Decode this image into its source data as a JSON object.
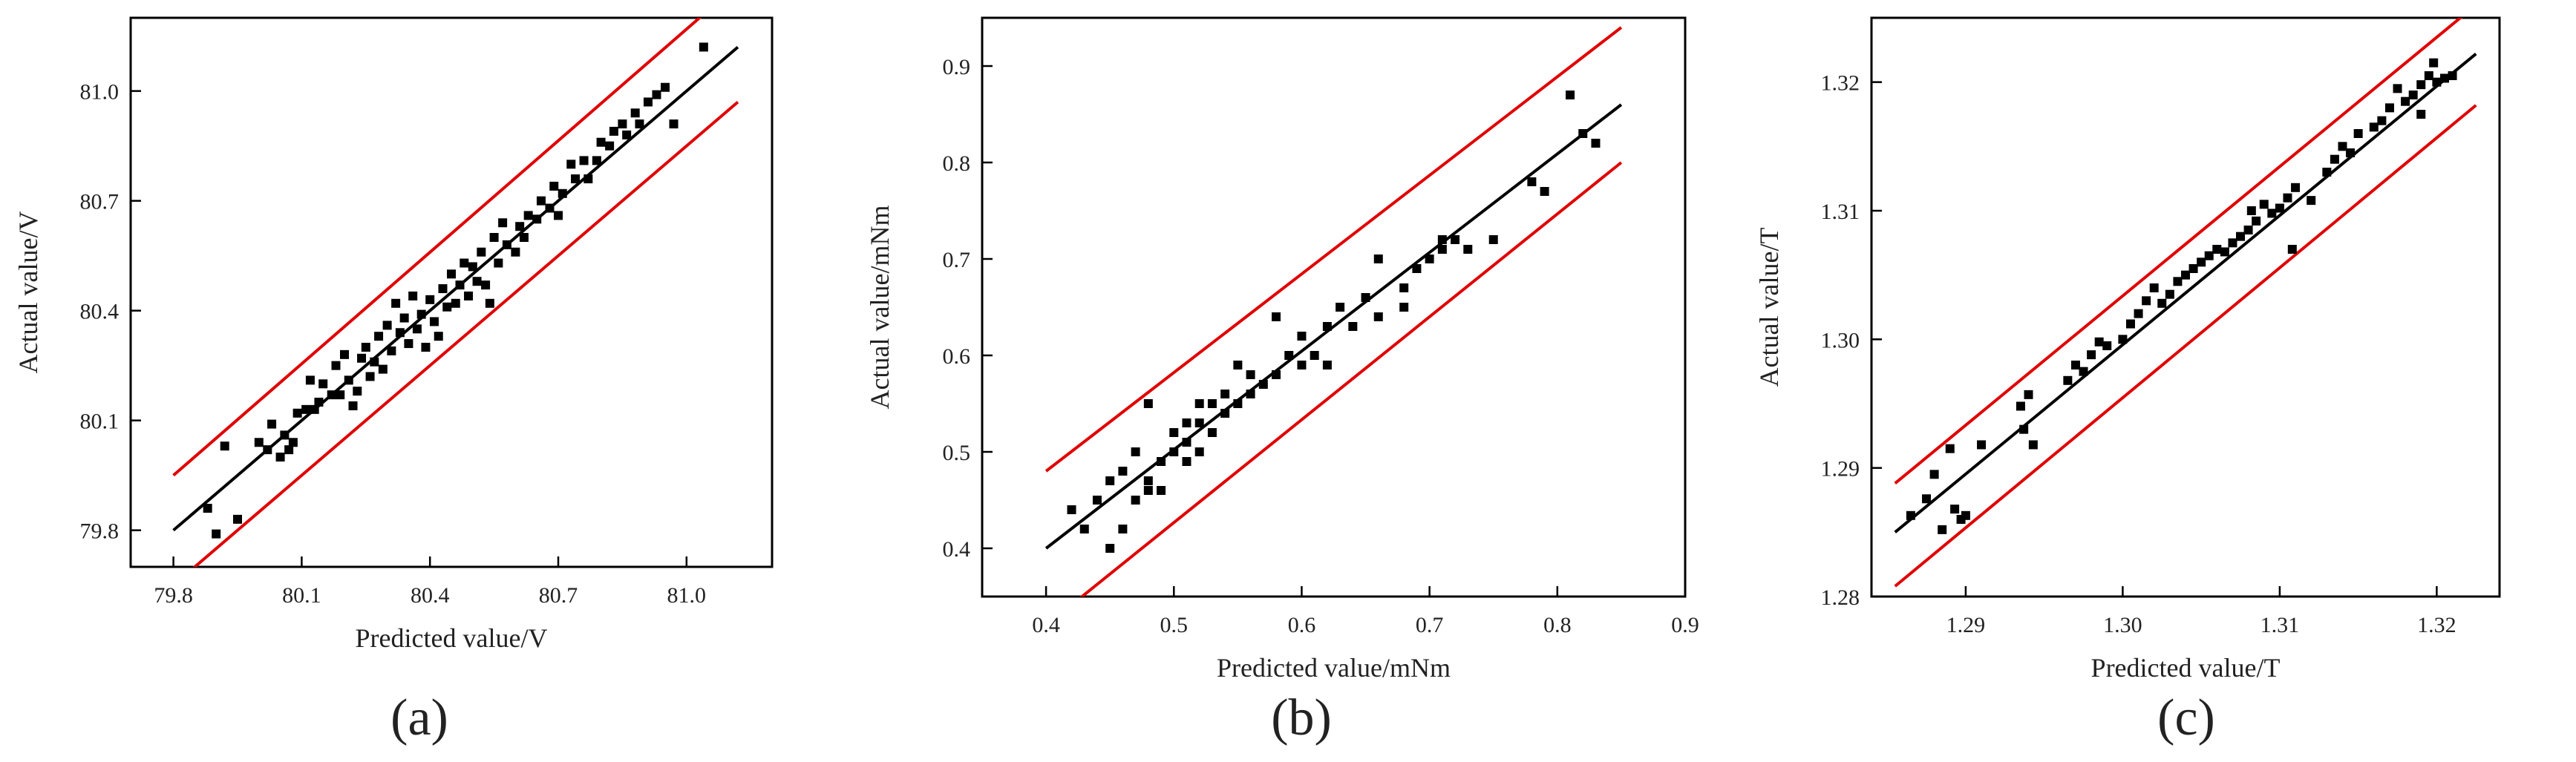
{
  "chart_data": [
    {
      "type": "scatter",
      "panel_label": "(a)",
      "xlabel": "Predicted value/V",
      "ylabel": "Actual value/V",
      "xlim": [
        79.7,
        81.2
      ],
      "ylim": [
        79.7,
        81.2
      ],
      "xticks": [
        79.8,
        80.1,
        80.4,
        80.7,
        81.0
      ],
      "yticks": [
        79.8,
        80.1,
        80.4,
        80.7,
        81.0
      ],
      "xtick_labels": [
        "79.8",
        "80.1",
        "80.4",
        "80.7",
        "81.0"
      ],
      "ytick_labels": [
        "79.8",
        "80.1",
        "80.4",
        "80.7",
        "81.0"
      ],
      "fit_line": {
        "x": [
          79.8,
          81.12
        ],
        "y": [
          79.8,
          81.12
        ],
        "color": "#000000"
      },
      "upper_bound": {
        "x": [
          79.8,
          81.06
        ],
        "y": [
          79.95,
          81.23
        ],
        "color": "#e00000"
      },
      "lower_bound": {
        "x": [
          79.8,
          81.12
        ],
        "y": [
          79.65,
          80.97
        ],
        "color": "#e00000"
      },
      "points": [
        [
          79.88,
          79.86
        ],
        [
          79.9,
          79.79
        ],
        [
          79.92,
          80.03
        ],
        [
          79.95,
          79.83
        ],
        [
          80.0,
          80.04
        ],
        [
          80.02,
          80.02
        ],
        [
          80.03,
          80.09
        ],
        [
          80.05,
          80.0
        ],
        [
          80.06,
          80.06
        ],
        [
          80.07,
          80.02
        ],
        [
          80.08,
          80.04
        ],
        [
          80.09,
          80.12
        ],
        [
          80.11,
          80.13
        ],
        [
          80.12,
          80.21
        ],
        [
          80.13,
          80.13
        ],
        [
          80.14,
          80.15
        ],
        [
          80.15,
          80.2
        ],
        [
          80.17,
          80.17
        ],
        [
          80.18,
          80.25
        ],
        [
          80.19,
          80.17
        ],
        [
          80.2,
          80.28
        ],
        [
          80.21,
          80.21
        ],
        [
          80.22,
          80.14
        ],
        [
          80.23,
          80.18
        ],
        [
          80.24,
          80.27
        ],
        [
          80.25,
          80.3
        ],
        [
          80.26,
          80.22
        ],
        [
          80.27,
          80.26
        ],
        [
          80.28,
          80.33
        ],
        [
          80.29,
          80.24
        ],
        [
          80.3,
          80.36
        ],
        [
          80.31,
          80.29
        ],
        [
          80.32,
          80.42
        ],
        [
          80.33,
          80.34
        ],
        [
          80.34,
          80.38
        ],
        [
          80.35,
          80.31
        ],
        [
          80.36,
          80.44
        ],
        [
          80.37,
          80.35
        ],
        [
          80.38,
          80.39
        ],
        [
          80.39,
          80.3
        ],
        [
          80.4,
          80.43
        ],
        [
          80.41,
          80.37
        ],
        [
          80.42,
          80.33
        ],
        [
          80.43,
          80.46
        ],
        [
          80.44,
          80.41
        ],
        [
          80.45,
          80.5
        ],
        [
          80.46,
          80.42
        ],
        [
          80.47,
          80.47
        ],
        [
          80.48,
          80.53
        ],
        [
          80.49,
          80.44
        ],
        [
          80.5,
          80.52
        ],
        [
          80.51,
          80.48
        ],
        [
          80.52,
          80.56
        ],
        [
          80.53,
          80.47
        ],
        [
          80.54,
          80.42
        ],
        [
          80.55,
          80.6
        ],
        [
          80.56,
          80.53
        ],
        [
          80.57,
          80.64
        ],
        [
          80.58,
          80.58
        ],
        [
          80.6,
          80.56
        ],
        [
          80.61,
          80.63
        ],
        [
          80.62,
          80.6
        ],
        [
          80.63,
          80.66
        ],
        [
          80.65,
          80.65
        ],
        [
          80.66,
          80.7
        ],
        [
          80.68,
          80.68
        ],
        [
          80.69,
          80.74
        ],
        [
          80.7,
          80.66
        ],
        [
          80.71,
          80.72
        ],
        [
          80.73,
          80.8
        ],
        [
          80.74,
          80.76
        ],
        [
          80.76,
          80.81
        ],
        [
          80.77,
          80.76
        ],
        [
          80.79,
          80.81
        ],
        [
          80.8,
          80.86
        ],
        [
          80.82,
          80.85
        ],
        [
          80.83,
          80.89
        ],
        [
          80.85,
          80.91
        ],
        [
          80.86,
          80.88
        ],
        [
          80.88,
          80.94
        ],
        [
          80.89,
          80.91
        ],
        [
          80.91,
          80.97
        ],
        [
          80.93,
          80.99
        ],
        [
          80.95,
          81.01
        ],
        [
          80.97,
          80.91
        ],
        [
          81.04,
          81.12
        ]
      ]
    },
    {
      "type": "scatter",
      "panel_label": "(b)",
      "xlabel": "Predicted value/mNm",
      "ylabel": "Actual value/mNm",
      "xlim": [
        0.35,
        0.9
      ],
      "ylim": [
        0.35,
        0.95
      ],
      "xticks": [
        0.4,
        0.5,
        0.6,
        0.7,
        0.8,
        0.9
      ],
      "yticks": [
        0.4,
        0.5,
        0.6,
        0.7,
        0.8,
        0.9
      ],
      "xtick_labels": [
        "0.4",
        "0.5",
        "0.6",
        "0.7",
        "0.8",
        "0.9"
      ],
      "ytick_labels": [
        "0.4",
        "0.5",
        "0.6",
        "0.7",
        "0.8",
        "0.9"
      ],
      "fit_line": {
        "x": [
          0.4,
          0.85
        ],
        "y": [
          0.4,
          0.86
        ],
        "color": "#000000"
      },
      "upper_bound": {
        "x": [
          0.4,
          0.85
        ],
        "y": [
          0.48,
          0.94
        ],
        "color": "#e00000"
      },
      "lower_bound": {
        "x": [
          0.4,
          0.85
        ],
        "y": [
          0.32,
          0.8
        ],
        "color": "#e00000"
      },
      "points": [
        [
          0.42,
          0.44
        ],
        [
          0.43,
          0.42
        ],
        [
          0.44,
          0.45
        ],
        [
          0.45,
          0.4
        ],
        [
          0.45,
          0.47
        ],
        [
          0.46,
          0.42
        ],
        [
          0.46,
          0.48
        ],
        [
          0.47,
          0.45
        ],
        [
          0.47,
          0.5
        ],
        [
          0.48,
          0.46
        ],
        [
          0.48,
          0.55
        ],
        [
          0.48,
          0.47
        ],
        [
          0.49,
          0.49
        ],
        [
          0.49,
          0.46
        ],
        [
          0.5,
          0.5
        ],
        [
          0.5,
          0.52
        ],
        [
          0.51,
          0.49
        ],
        [
          0.51,
          0.53
        ],
        [
          0.51,
          0.51
        ],
        [
          0.52,
          0.55
        ],
        [
          0.52,
          0.5
        ],
        [
          0.52,
          0.53
        ],
        [
          0.53,
          0.52
        ],
        [
          0.53,
          0.55
        ],
        [
          0.54,
          0.54
        ],
        [
          0.54,
          0.56
        ],
        [
          0.55,
          0.55
        ],
        [
          0.55,
          0.59
        ],
        [
          0.56,
          0.56
        ],
        [
          0.56,
          0.58
        ],
        [
          0.57,
          0.57
        ],
        [
          0.58,
          0.64
        ],
        [
          0.58,
          0.58
        ],
        [
          0.59,
          0.6
        ],
        [
          0.6,
          0.59
        ],
        [
          0.6,
          0.62
        ],
        [
          0.61,
          0.6
        ],
        [
          0.62,
          0.59
        ],
        [
          0.62,
          0.63
        ],
        [
          0.63,
          0.65
        ],
        [
          0.64,
          0.63
        ],
        [
          0.65,
          0.66
        ],
        [
          0.66,
          0.64
        ],
        [
          0.66,
          0.7
        ],
        [
          0.68,
          0.65
        ],
        [
          0.68,
          0.67
        ],
        [
          0.69,
          0.69
        ],
        [
          0.7,
          0.7
        ],
        [
          0.71,
          0.72
        ],
        [
          0.71,
          0.71
        ],
        [
          0.72,
          0.72
        ],
        [
          0.73,
          0.71
        ],
        [
          0.75,
          0.72
        ],
        [
          0.78,
          0.78
        ],
        [
          0.79,
          0.77
        ],
        [
          0.81,
          0.87
        ],
        [
          0.82,
          0.83
        ],
        [
          0.83,
          0.82
        ]
      ]
    },
    {
      "type": "scatter",
      "panel_label": "(c)",
      "xlabel": "Predicted value/T",
      "ylabel": "Actual value/T",
      "xlim": [
        1.284,
        1.324
      ],
      "ylim": [
        1.28,
        1.325
      ],
      "xticks": [
        1.29,
        1.3,
        1.31,
        1.32
      ],
      "yticks": [
        1.28,
        1.29,
        1.3,
        1.31,
        1.32
      ],
      "xtick_labels": [
        "1.29",
        "1.30",
        "1.31",
        "1.32"
      ],
      "ytick_labels": [
        "1.28",
        "1.29",
        "1.30",
        "1.31",
        "1.32"
      ],
      "fit_line": {
        "x": [
          1.2855,
          1.3225
        ],
        "y": [
          1.285,
          1.3222
        ],
        "color": "#000000"
      },
      "upper_bound": {
        "x": [
          1.2855,
          1.3225
        ],
        "y": [
          1.2888,
          1.326
        ],
        "color": "#e00000"
      },
      "lower_bound": {
        "x": [
          1.2855,
          1.3225
        ],
        "y": [
          1.2808,
          1.3182
        ],
        "color": "#e00000"
      },
      "points": [
        [
          1.2865,
          1.2863
        ],
        [
          1.2875,
          1.2876
        ],
        [
          1.288,
          1.2895
        ],
        [
          1.2885,
          1.2852
        ],
        [
          1.289,
          1.2915
        ],
        [
          1.2893,
          1.2868
        ],
        [
          1.2897,
          1.286
        ],
        [
          1.29,
          1.2863
        ],
        [
          1.291,
          1.2918
        ],
        [
          1.2935,
          1.2948
        ],
        [
          1.2937,
          1.293
        ],
        [
          1.294,
          1.2957
        ],
        [
          1.2943,
          1.2918
        ],
        [
          1.2965,
          1.2968
        ],
        [
          1.297,
          1.298
        ],
        [
          1.2975,
          1.2975
        ],
        [
          1.298,
          1.2988
        ],
        [
          1.2985,
          1.2998
        ],
        [
          1.299,
          1.2995
        ],
        [
          1.3,
          1.3
        ],
        [
          1.3005,
          1.3012
        ],
        [
          1.301,
          1.302
        ],
        [
          1.3015,
          1.303
        ],
        [
          1.302,
          1.304
        ],
        [
          1.3025,
          1.3028
        ],
        [
          1.303,
          1.3035
        ],
        [
          1.3035,
          1.3045
        ],
        [
          1.304,
          1.305
        ],
        [
          1.3045,
          1.3055
        ],
        [
          1.305,
          1.306
        ],
        [
          1.3055,
          1.3065
        ],
        [
          1.306,
          1.307
        ],
        [
          1.3065,
          1.3068
        ],
        [
          1.307,
          1.3075
        ],
        [
          1.3075,
          1.308
        ],
        [
          1.308,
          1.3085
        ],
        [
          1.3082,
          1.31
        ],
        [
          1.3085,
          1.3092
        ],
        [
          1.309,
          1.3105
        ],
        [
          1.3095,
          1.3098
        ],
        [
          1.31,
          1.3102
        ],
        [
          1.3105,
          1.311
        ],
        [
          1.3108,
          1.307
        ],
        [
          1.311,
          1.3118
        ],
        [
          1.312,
          1.3108
        ],
        [
          1.313,
          1.313
        ],
        [
          1.3135,
          1.314
        ],
        [
          1.314,
          1.315
        ],
        [
          1.3145,
          1.3145
        ],
        [
          1.315,
          1.316
        ],
        [
          1.316,
          1.3165
        ],
        [
          1.3165,
          1.317
        ],
        [
          1.317,
          1.318
        ],
        [
          1.3175,
          1.3195
        ],
        [
          1.318,
          1.3185
        ],
        [
          1.3185,
          1.319
        ],
        [
          1.319,
          1.3198
        ],
        [
          1.3195,
          1.3205
        ],
        [
          1.3198,
          1.3215
        ],
        [
          1.32,
          1.32
        ],
        [
          1.3205,
          1.3203
        ],
        [
          1.321,
          1.3205
        ],
        [
          1.319,
          1.3175
        ]
      ]
    }
  ]
}
